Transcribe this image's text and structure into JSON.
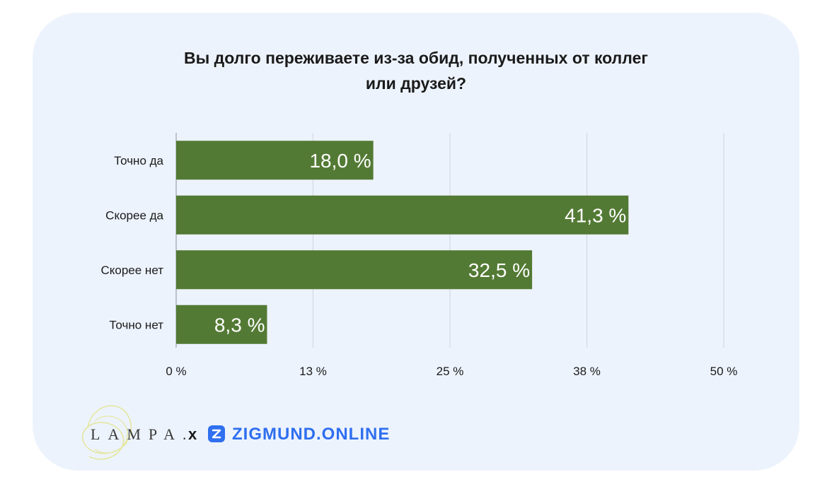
{
  "chart_data": {
    "type": "bar",
    "orientation": "horizontal",
    "title_lines": [
      "Вы долго переживаете из-за обид, полученных от коллег",
      "или друзей?"
    ],
    "categories": [
      "Точно да",
      "Скорее да",
      "Скорее нет",
      "Точно нет"
    ],
    "values": [
      18.0,
      41.3,
      32.5,
      8.3
    ],
    "value_labels": [
      "18,0 %",
      "41,3 %",
      "32,5 %",
      "8,3 %"
    ],
    "x_ticks": [
      0,
      12.5,
      25,
      37.5,
      50
    ],
    "x_tick_labels": [
      "0 %",
      "13 %",
      "25 %",
      "38 %",
      "50 %"
    ],
    "xlim": [
      0,
      50
    ],
    "grid": true,
    "bar_color": "#537a34",
    "grid_color": "#cfd3dc"
  },
  "footer": {
    "logo_left": "LAMPA.",
    "separator": "x",
    "logo_right": "ZIGMUND.ONLINE",
    "logo_right_color": "#2f6ff0"
  },
  "theme": {
    "card_background": "#edf3fd"
  }
}
